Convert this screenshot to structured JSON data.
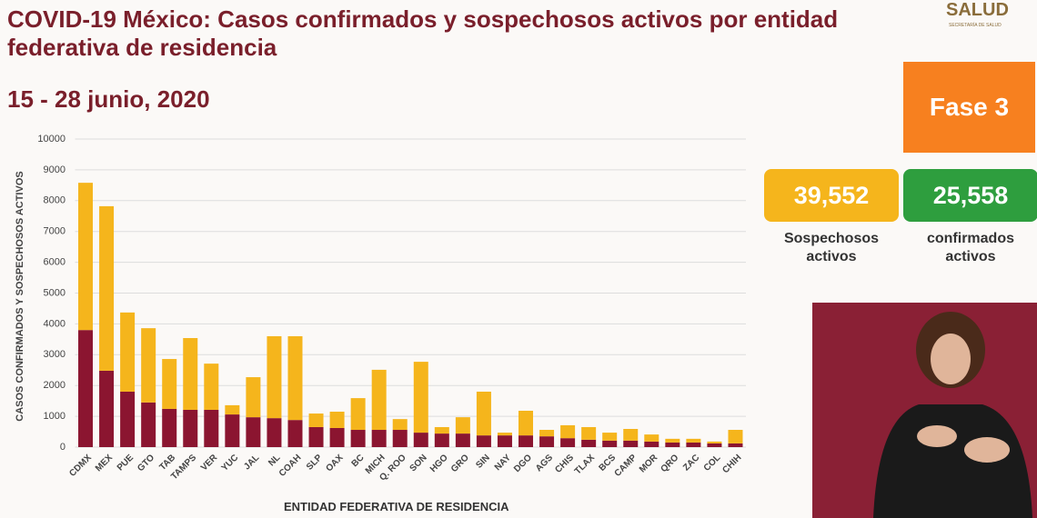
{
  "header": {
    "title": "COVID-19 México: Casos confirmados y sospechosos activos por entidad federativa de residencia",
    "date": "15 - 28 junio, 2020",
    "logo": "SALUD",
    "logo_sub": "SECRETARÍA DE SALUD"
  },
  "phase": "Fase 3",
  "summary": [
    {
      "value": "39,552",
      "label": "Sospechosos activos",
      "color": "#f5b51c"
    },
    {
      "value": "25,558",
      "label": "confirmados activos",
      "color": "#2e9e3e"
    }
  ],
  "chart_data": {
    "type": "stacked_bar",
    "y_label": "CASOS CONFIRMADOS Y SOSPECHOSOS ACTIVOS",
    "x_label": "ENTIDAD FEDERATIVA DE RESIDENCIA",
    "categories": [
      "CDMX",
      "MEX",
      "PUE",
      "GTO",
      "TAB",
      "TAMPS",
      "VER",
      "YUC",
      "JAL",
      "NL",
      "COAH",
      "SLP",
      "OAX",
      "BC",
      "MICH",
      "Q. ROO",
      "SON",
      "HGO",
      "GRO",
      "SIN",
      "NAY",
      "DGO",
      "AGS",
      "CHIS",
      "TLAX",
      "BCS",
      "CAMP",
      "MOR",
      "QRO",
      "ZAC",
      "COL",
      "CHIH"
    ],
    "series": [
      {
        "color": "#8b1530",
        "values": [
          3800,
          2480,
          1800,
          1450,
          1240,
          1210,
          1210,
          1060,
          970,
          940,
          880,
          650,
          620,
          560,
          560,
          560,
          470,
          440,
          440,
          380,
          380,
          380,
          350,
          290,
          240,
          210,
          210,
          180,
          150,
          150,
          120,
          120
        ]
      },
      {
        "color": "#f5b51c",
        "values": [
          4780,
          5340,
          2570,
          2410,
          1620,
          2330,
          1500,
          300,
          1300,
          2660,
          2720,
          440,
          530,
          1030,
          1950,
          350,
          2300,
          210,
          530,
          1420,
          90,
          800,
          210,
          420,
          410,
          260,
          380,
          230,
          120,
          120,
          60,
          440
        ]
      }
    ],
    "ylim": [
      0,
      10000
    ],
    "yticks": [
      0,
      1000,
      2000,
      3000,
      4000,
      5000,
      6000,
      7000,
      8000,
      9000,
      10000
    ],
    "grid": true
  }
}
